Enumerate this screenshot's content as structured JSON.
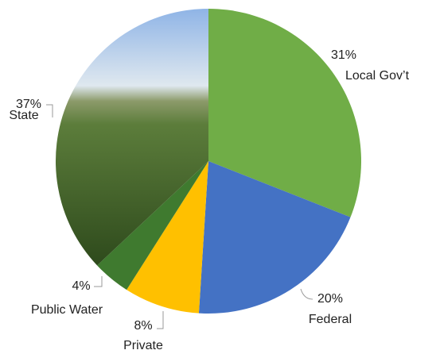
{
  "chart_data": {
    "type": "pie",
    "categories": [
      "Local Gov’t",
      "Federal",
      "Private",
      "Public Water",
      "State"
    ],
    "values": [
      31,
      20,
      8,
      4,
      37
    ],
    "value_labels": [
      "31%",
      "20%",
      "8%",
      "4%",
      "37%"
    ],
    "colors": [
      "#70ad47",
      "#4472c4",
      "#ffc000",
      "#3f7a2f",
      "#4f7a33"
    ]
  }
}
